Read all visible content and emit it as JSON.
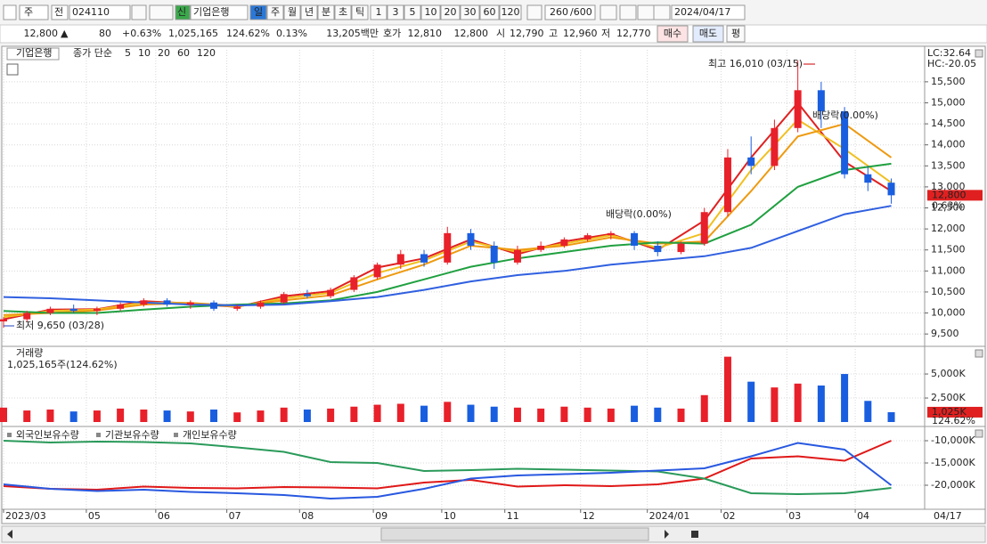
{
  "toolbar": {
    "market": "주",
    "mode": "전",
    "code": "024110",
    "badge": "신",
    "name": "기업은행",
    "periods": [
      "일",
      "주",
      "월",
      "년",
      "분",
      "초",
      "틱"
    ],
    "intervals": [
      "1",
      "3",
      "5",
      "10",
      "20",
      "30",
      "60",
      "120"
    ],
    "count": "260",
    "max_count": "/600",
    "date": "2024/04/17"
  },
  "quote": {
    "price": "12,800",
    "arrow": "▲",
    "change": "80",
    "change_rate": "+0.63%",
    "volume": "1,025,165",
    "volume_rate": "124.62%",
    "turnover": "0.13%",
    "amount": "13,205백만",
    "bid_ask_label": "호가",
    "ask": "12,810",
    "bid": "12,800",
    "open_label": "시",
    "open": "12,790",
    "high_label": "고",
    "high": "12,960",
    "low_label": "저",
    "low": "12,770",
    "buy": "매수",
    "sell": "매도",
    "avg": "평"
  },
  "chart_data": [
    {
      "type": "candlestick",
      "title": "기업은행",
      "subtitle": "종가 단순",
      "up_color": "#e8202a",
      "down_color": "#1a5ee0",
      "x": [
        0,
        7,
        14,
        21,
        28,
        35,
        42,
        49,
        56,
        63,
        70,
        77,
        84,
        91,
        98,
        105,
        112,
        119,
        126,
        133,
        140,
        147,
        154,
        161,
        168,
        175,
        182,
        189,
        196,
        203,
        210,
        217,
        224,
        231,
        238,
        245,
        252,
        259,
        266
      ],
      "open": [
        9800,
        9850,
        10000,
        10100,
        10050,
        10100,
        10200,
        10300,
        10200,
        10250,
        10100,
        10150,
        10250,
        10450,
        10400,
        10550,
        10850,
        11150,
        11400,
        11200,
        11900,
        11600,
        11200,
        11500,
        11600,
        11750,
        11850,
        11900,
        11600,
        11450,
        11650,
        12400,
        13700,
        13500,
        14400,
        15300,
        14800,
        13300,
        13100
      ],
      "high": [
        9900,
        10050,
        10150,
        10200,
        10150,
        10250,
        10350,
        10350,
        10300,
        10300,
        10200,
        10300,
        10500,
        10550,
        10600,
        10900,
        11200,
        11500,
        11500,
        12050,
        12000,
        11700,
        11600,
        11700,
        11800,
        11900,
        11950,
        11950,
        11700,
        11700,
        12500,
        13900,
        14200,
        14600,
        16010,
        15500,
        14900,
        13500,
        13200
      ],
      "low": [
        9650,
        9800,
        9950,
        10000,
        9950,
        10050,
        10150,
        10150,
        10100,
        10050,
        10050,
        10100,
        10200,
        10350,
        10350,
        10500,
        10800,
        11050,
        11100,
        11150,
        11500,
        11050,
        11150,
        11450,
        11550,
        11700,
        11750,
        11500,
        11350,
        11400,
        11600,
        12300,
        13300,
        13400,
        14300,
        14400,
        13200,
        12900,
        12600
      ],
      "close": [
        9850,
        10000,
        10100,
        10050,
        10100,
        10200,
        10300,
        10200,
        10250,
        10100,
        10150,
        10250,
        10450,
        10400,
        10550,
        10850,
        11150,
        11400,
        11200,
        11900,
        11600,
        11200,
        11500,
        11600,
        11750,
        11850,
        11900,
        11600,
        11450,
        11650,
        12400,
        13700,
        13500,
        14400,
        15300,
        14800,
        13300,
        13100,
        12800
      ],
      "series": [
        {
          "name": "5",
          "color": "#e02020",
          "x": [
            0,
            14,
            28,
            42,
            56,
            70,
            84,
            98,
            112,
            126,
            140,
            154,
            168,
            182,
            196,
            210,
            224,
            238,
            252,
            266
          ],
          "values": [
            9850,
            10080,
            10090,
            10280,
            10230,
            10140,
            10400,
            10520,
            11080,
            11300,
            11750,
            11400,
            11700,
            11880,
            11500,
            12200,
            13700,
            15000,
            13600,
            12900
          ]
        },
        {
          "name": "10",
          "color": "#f0c020",
          "x": [
            0,
            14,
            28,
            42,
            56,
            70,
            84,
            98,
            112,
            126,
            140,
            154,
            168,
            182,
            196,
            210,
            224,
            238,
            252,
            266
          ],
          "values": [
            9900,
            10050,
            10080,
            10250,
            10240,
            10150,
            10350,
            10480,
            10950,
            11250,
            11700,
            11450,
            11650,
            11850,
            11550,
            11900,
            13400,
            14600,
            13900,
            13100
          ]
        },
        {
          "name": "20",
          "color": "#ee9a10",
          "x": [
            0,
            14,
            28,
            42,
            56,
            70,
            84,
            98,
            112,
            126,
            140,
            154,
            168,
            182,
            196,
            210,
            224,
            238,
            252,
            266
          ],
          "values": [
            9950,
            10000,
            10060,
            10200,
            10240,
            10170,
            10300,
            10420,
            10800,
            11150,
            11600,
            11500,
            11600,
            11800,
            11650,
            11700,
            12900,
            14200,
            14500,
            13700
          ]
        },
        {
          "name": "60",
          "color": "#20a040",
          "x": [
            0,
            14,
            28,
            42,
            56,
            70,
            84,
            98,
            112,
            126,
            140,
            154,
            168,
            182,
            196,
            210,
            224,
            238,
            252,
            266
          ],
          "values": [
            10050,
            10000,
            10000,
            10080,
            10150,
            10200,
            10230,
            10300,
            10500,
            10800,
            11100,
            11300,
            11450,
            11600,
            11680,
            11650,
            12100,
            13000,
            13400,
            13550
          ]
        },
        {
          "name": "120",
          "color": "#3060e0",
          "x": [
            0,
            14,
            28,
            42,
            56,
            70,
            84,
            98,
            112,
            126,
            140,
            154,
            168,
            182,
            196,
            210,
            224,
            238,
            252,
            266
          ],
          "values": [
            10380,
            10350,
            10300,
            10250,
            10200,
            10180,
            10200,
            10280,
            10380,
            10550,
            10750,
            10900,
            11000,
            11150,
            11250,
            11350,
            11550,
            11950,
            12350,
            12550
          ]
        }
      ],
      "xlim": [
        0,
        276
      ],
      "xticks": [
        {
          "value": 0,
          "label": "2023/03"
        },
        {
          "value": 24.8,
          "label": "05"
        },
        {
          "value": 45.6,
          "label": "06"
        },
        {
          "value": 66.9,
          "label": "07"
        },
        {
          "value": 88.7,
          "label": "08"
        },
        {
          "value": 110.8,
          "label": "09"
        },
        {
          "value": 131.3,
          "label": "10"
        },
        {
          "value": 150.2,
          "label": "11"
        },
        {
          "value": 172.9,
          "label": "12"
        },
        {
          "value": 192.9,
          "label": "2024/01"
        },
        {
          "value": 215,
          "label": "02"
        },
        {
          "value": 234.7,
          "label": "03"
        },
        {
          "value": 255.2,
          "label": "04"
        }
      ],
      "x_end_label": "04/17",
      "ylim": [
        9270,
        16260
      ],
      "yticks": [
        {
          "value": 9500,
          "label": "9,500"
        },
        {
          "value": 10000,
          "label": "10,000"
        },
        {
          "value": 10500,
          "label": "10,500"
        },
        {
          "value": 11000,
          "label": "11,000"
        },
        {
          "value": 11500,
          "label": "11,500"
        },
        {
          "value": 12000,
          "label": "12,000"
        },
        {
          "value": 12500,
          "label": "12,500"
        },
        {
          "value": 13000,
          "label": "13,000"
        },
        {
          "value": 13500,
          "label": "13,500"
        },
        {
          "value": 14000,
          "label": "14,000"
        },
        {
          "value": 14500,
          "label": "14,500"
        },
        {
          "value": 15000,
          "label": "15,000"
        },
        {
          "value": 15500,
          "label": "15,500"
        }
      ],
      "grid": true,
      "annotations": [
        "최고 16,010 (03/15)",
        "최저 9,650 (03/28)",
        "배당락(0.00%)",
        "배당락(0.00%)"
      ],
      "indicators": [
        "LC:32.64",
        "HC:-20.05"
      ],
      "last_label": "12,800",
      "last_change": "0.63%"
    },
    {
      "type": "bar",
      "title": "거래량",
      "subtitle": "1,025,165주(124.62%)",
      "x": [
        0,
        7,
        14,
        21,
        28,
        35,
        42,
        49,
        56,
        63,
        70,
        77,
        84,
        91,
        98,
        105,
        112,
        119,
        126,
        133,
        140,
        147,
        154,
        161,
        168,
        175,
        182,
        189,
        196,
        203,
        210,
        217,
        224,
        231,
        238,
        245,
        252,
        259,
        266
      ],
      "values": [
        1500000,
        1200000,
        1300000,
        1100000,
        1200000,
        1400000,
        1300000,
        1200000,
        1100000,
        1300000,
        1000000,
        1200000,
        1500000,
        1300000,
        1400000,
        1600000,
        1800000,
        1900000,
        1700000,
        2100000,
        1800000,
        1600000,
        1500000,
        1400000,
        1600000,
        1500000,
        1400000,
        1700000,
        1500000,
        1400000,
        2800000,
        6800000,
        4200000,
        3600000,
        4000000,
        3800000,
        5000000,
        2200000,
        1025165
      ],
      "ylim": [
        0,
        7600000
      ],
      "yticks": [
        {
          "value": 2500000,
          "label": "2,500K"
        },
        {
          "value": 5000000,
          "label": "5,000K"
        }
      ],
      "grid": true,
      "last_label": "1,025K",
      "last_change": "124.62%"
    },
    {
      "type": "line",
      "series": [
        {
          "name": "외국인보유수량",
          "color": "#e01818",
          "x": [
            0,
            14,
            28,
            42,
            56,
            70,
            84,
            98,
            112,
            126,
            140,
            154,
            168,
            182,
            196,
            210,
            224,
            238,
            252,
            266
          ],
          "values": [
            -20200000,
            -20800000,
            -21000000,
            -20300000,
            -20600000,
            -20700000,
            -20400000,
            -20500000,
            -20700000,
            -19400000,
            -18800000,
            -20300000,
            -20000000,
            -20200000,
            -19800000,
            -18500000,
            -14000000,
            -13500000,
            -14500000,
            -10000000
          ]
        },
        {
          "name": "기관보유수량",
          "color": "#2a9a5a",
          "x": [
            0,
            14,
            28,
            42,
            56,
            70,
            84,
            98,
            112,
            126,
            140,
            154,
            168,
            182,
            196,
            210,
            224,
            238,
            252,
            266
          ],
          "values": [
            -10000000,
            -10400000,
            -10200000,
            -10300000,
            -10600000,
            -11500000,
            -12500000,
            -14800000,
            -15000000,
            -16800000,
            -16600000,
            -16300000,
            -16500000,
            -16700000,
            -16900000,
            -18500000,
            -21800000,
            -22000000,
            -21800000,
            -20600000
          ]
        },
        {
          "name": "개인보유수량",
          "color": "#2858e0",
          "x": [
            0,
            14,
            28,
            42,
            56,
            70,
            84,
            98,
            112,
            126,
            140,
            154,
            168,
            182,
            196,
            210,
            224,
            238,
            252,
            266
          ],
          "values": [
            -19800000,
            -20800000,
            -21300000,
            -21000000,
            -21500000,
            -21800000,
            -22200000,
            -23000000,
            -22600000,
            -20800000,
            -18500000,
            -17800000,
            -17500000,
            -17200000,
            -16700000,
            -16200000,
            -13500000,
            -10500000,
            -12000000,
            -20000000
          ]
        }
      ],
      "ylim": [
        -25000000,
        -7400000
      ],
      "yticks": [
        {
          "value": -20000000,
          "label": "-20,000K"
        },
        {
          "value": -15000000,
          "label": "-15,000K"
        },
        {
          "value": -10000000,
          "label": "-10,000K"
        }
      ],
      "grid": true
    }
  ]
}
